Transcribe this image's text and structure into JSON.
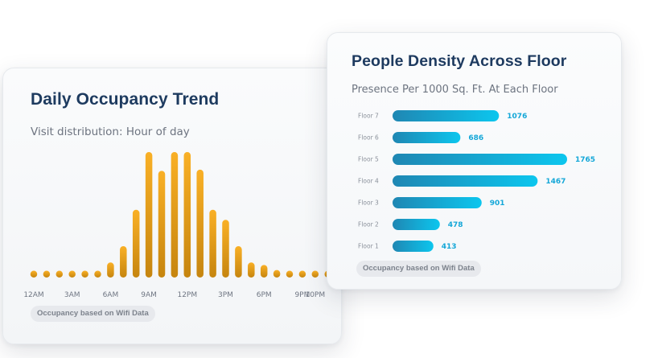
{
  "cards": {
    "occupancy": {
      "title": "Daily Occupancy Trend",
      "subtitle": "Visit distribution: Hour of day",
      "badge": "Occupancy based on Wifi Data"
    },
    "density": {
      "title": "People Density Across Floor",
      "subtitle": "Presence Per 1000 Sq. Ft. At Each Floor",
      "badge": "Occupancy based on Wifi Data"
    }
  },
  "colors": {
    "bar_top": "#f9b026",
    "bar_bottom": "#c6850f",
    "floor_bar_left": "#1f87b3",
    "floor_bar_right": "#0cc6ee",
    "floor_value": "#14a7d8"
  },
  "chart_data": [
    {
      "type": "bar",
      "categories": [
        "12AM",
        "1AM",
        "2AM",
        "3AM",
        "4AM",
        "5AM",
        "6AM",
        "7AM",
        "8AM",
        "9AM",
        "10AM",
        "11AM",
        "12PM",
        "1PM",
        "2PM",
        "3PM",
        "4PM",
        "5PM",
        "6PM",
        "7PM",
        "8PM",
        "9PM",
        "10PM",
        "11PM"
      ],
      "tick_labels": [
        "12AM",
        "3AM",
        "6AM",
        "9AM",
        "12PM",
        "3PM",
        "6PM",
        "9PM",
        "10PM"
      ],
      "values": [
        0,
        0,
        0,
        0,
        0,
        0,
        12,
        25,
        54,
        100,
        85,
        100,
        100,
        86,
        54,
        46,
        25,
        12,
        10,
        6,
        3,
        0,
        0,
        0
      ],
      "ylim": [
        0,
        100
      ],
      "title": "Daily Occupancy Trend",
      "subtitle": "Visit distribution: Hour of day",
      "xlabel": "",
      "ylabel": "",
      "grid": false,
      "legend": "none"
    },
    {
      "type": "bar",
      "orientation": "horizontal",
      "categories": [
        "Floor 7",
        "Floor 6",
        "Floor 5",
        "Floor 4",
        "Floor 3",
        "Floor 2",
        "Floor 1"
      ],
      "values": [
        1076,
        686,
        1765,
        1467,
        901,
        478,
        413
      ],
      "xlim": [
        0,
        1765
      ],
      "title": "People Density Across Floor",
      "subtitle": "Presence Per 1000 Sq. Ft. At Each Floor",
      "xlabel": "",
      "ylabel": "",
      "grid": false,
      "legend": "none"
    }
  ]
}
